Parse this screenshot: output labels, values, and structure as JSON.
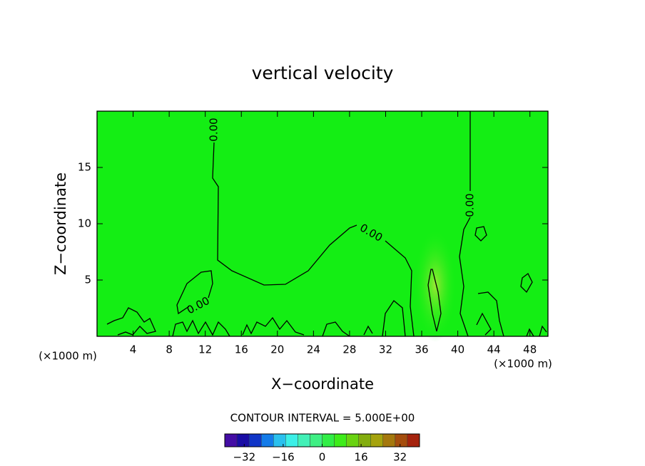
{
  "chart_data": {
    "type": "contour",
    "title": "vertical velocity",
    "xlabel": "X−coordinate",
    "ylabel": "Z−coordinate",
    "x_unit": "(×1000 m)",
    "xlim": [
      0,
      50
    ],
    "xticks": [
      4,
      8,
      12,
      16,
      20,
      24,
      28,
      32,
      36,
      40,
      44,
      48
    ],
    "ylim": [
      0,
      20
    ],
    "yticks": [
      5,
      10,
      15
    ],
    "field_color": "#14ee14",
    "contours": [
      {
        "level": 0,
        "label": "0.00"
      }
    ],
    "interval_text": "CONTOUR INTERVAL = 5.000E+00",
    "interval": 5,
    "clim": [
      -40,
      40
    ],
    "cticks": [
      {
        "value": -32,
        "label": "−32"
      },
      {
        "value": -16,
        "label": "−16"
      },
      0,
      16,
      32
    ]
  }
}
